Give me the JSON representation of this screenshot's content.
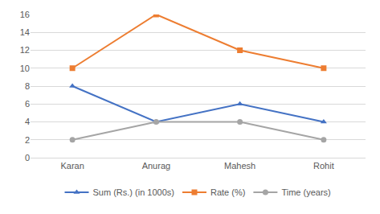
{
  "chart_data": {
    "type": "line",
    "categories": [
      "Karan",
      "Anurag",
      "Mahesh",
      "Rohit"
    ],
    "series": [
      {
        "name": "Sum (Rs.) (in 1000s)",
        "color": "#4472c4",
        "marker": "triangle-up",
        "values": [
          8,
          4,
          6,
          4
        ]
      },
      {
        "name": "Rate (%)",
        "color": "#ed7d31",
        "marker": "square",
        "values": [
          10,
          16,
          12,
          10
        ]
      },
      {
        "name": "Time (years)",
        "color": "#a5a5a5",
        "marker": "circle",
        "values": [
          2,
          4,
          4,
          2
        ]
      }
    ],
    "ylim": [
      0,
      16
    ],
    "yticks": [
      0,
      2,
      4,
      6,
      8,
      10,
      12,
      14,
      16
    ],
    "grid": true,
    "legend": "bottom"
  }
}
